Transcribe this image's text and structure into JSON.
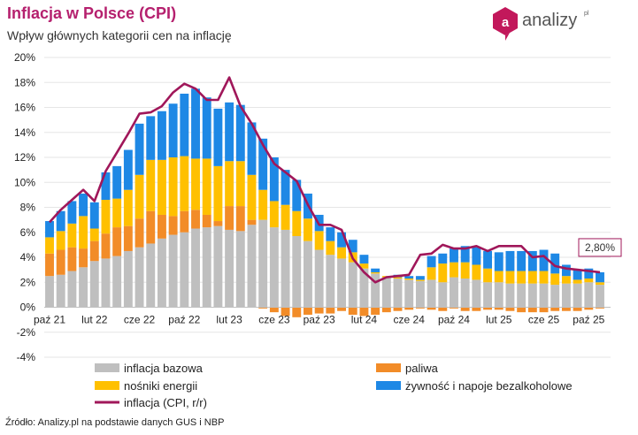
{
  "header": {
    "title": "Inflacja w Polsce (CPI)",
    "subtitle": "Wpływ głównych kategorii cen na inflację"
  },
  "logo": {
    "text": "analizy",
    "sup": "pl",
    "mark": "a",
    "color": "#c2185b"
  },
  "source": "Źródło: Analizy.pl na podstawie danych GUS i NBP",
  "chart_data": {
    "type": "bar",
    "stacked": true,
    "title": "Inflacja w Polsce (CPI)",
    "ylim": [
      -4,
      20
    ],
    "yticks": [
      -4,
      -2,
      0,
      2,
      4,
      6,
      8,
      10,
      12,
      14,
      16,
      18,
      20
    ],
    "ytick_labels": [
      "-4%",
      "-2%",
      "0%",
      "2%",
      "4%",
      "6%",
      "8%",
      "10%",
      "12%",
      "14%",
      "16%",
      "18%",
      "20%"
    ],
    "x_labels": [
      {
        "index": 0,
        "label": "paź 21"
      },
      {
        "index": 4,
        "label": "lut 22"
      },
      {
        "index": 8,
        "label": "cze 22"
      },
      {
        "index": 12,
        "label": "paź 22"
      },
      {
        "index": 16,
        "label": "lut 23"
      },
      {
        "index": 20,
        "label": "cze 23"
      },
      {
        "index": 24,
        "label": "paź 23"
      },
      {
        "index": 28,
        "label": "lut 24"
      },
      {
        "index": 32,
        "label": "cze 24"
      },
      {
        "index": 36,
        "label": "paź 24"
      },
      {
        "index": 40,
        "label": "lut 25"
      },
      {
        "index": 44,
        "label": "cze 25"
      },
      {
        "index": 48,
        "label": "paź 25"
      }
    ],
    "series": [
      {
        "name": "inflacja bazowa",
        "color": "#bfbfbf",
        "values": [
          2.5,
          2.6,
          2.9,
          3.2,
          3.7,
          3.9,
          4.1,
          4.5,
          4.8,
          5.1,
          5.5,
          5.8,
          6.0,
          6.3,
          6.4,
          6.5,
          6.2,
          6.1,
          6.6,
          7.0,
          6.4,
          6.2,
          5.7,
          5.3,
          4.6,
          4.2,
          3.9,
          3.6,
          3.1,
          2.7,
          2.4,
          2.3,
          2.2,
          2.1,
          2.2,
          2.0,
          2.4,
          2.3,
          2.2,
          2.0,
          2.0,
          1.9,
          1.9,
          1.9,
          1.9,
          1.8,
          1.9,
          1.9,
          2.0,
          1.8
        ]
      },
      {
        "name": "paliwa",
        "color": "#f28c28",
        "values": [
          1.8,
          2.0,
          1.9,
          1.5,
          1.6,
          2.0,
          2.3,
          2.0,
          2.3,
          2.6,
          1.9,
          1.5,
          1.7,
          1.5,
          1.0,
          0.4,
          1.9,
          2.0,
          0.4,
          -0.1,
          -0.4,
          -0.7,
          -0.8,
          -0.6,
          -0.5,
          -0.5,
          -0.3,
          -0.6,
          -0.7,
          -0.6,
          -0.4,
          -0.3,
          -0.2,
          -0.1,
          -0.2,
          -0.3,
          -0.1,
          -0.3,
          -0.3,
          -0.2,
          -0.2,
          -0.3,
          -0.4,
          -0.4,
          -0.4,
          -0.3,
          -0.3,
          -0.3,
          -0.2,
          -0.1
        ]
      },
      {
        "name": "nośniki energii",
        "color": "#ffc000",
        "values": [
          1.3,
          1.5,
          1.9,
          2.6,
          1.0,
          2.7,
          2.3,
          2.9,
          3.5,
          4.1,
          4.4,
          4.7,
          4.4,
          4.1,
          4.5,
          4.4,
          3.6,
          3.6,
          3.6,
          2.4,
          2.1,
          2.0,
          2.0,
          1.8,
          1.5,
          1.1,
          0.9,
          0.8,
          0.4,
          0.1,
          0.1,
          0.1,
          0.1,
          0.1,
          1.0,
          1.5,
          1.2,
          1.3,
          1.2,
          1.1,
          0.9,
          1.0,
          1.0,
          1.0,
          1.0,
          0.9,
          0.6,
          0.3,
          0.3,
          0.2
        ]
      },
      {
        "name": "żywność i napoje bezalkoholowe",
        "color": "#1e88e5",
        "values": [
          1.3,
          1.6,
          1.8,
          1.8,
          2.1,
          2.2,
          2.6,
          3.2,
          4.1,
          3.5,
          3.9,
          4.3,
          5.0,
          5.6,
          4.9,
          4.6,
          4.7,
          4.5,
          4.2,
          4.1,
          3.5,
          2.8,
          2.5,
          2.0,
          1.3,
          1.1,
          1.2,
          1.0,
          0.7,
          0.3,
          0.0,
          0.2,
          0.2,
          0.3,
          0.9,
          0.8,
          1.1,
          1.3,
          1.4,
          1.4,
          1.5,
          1.6,
          1.6,
          1.6,
          1.7,
          1.6,
          0.9,
          0.8,
          0.8,
          0.8
        ]
      },
      {
        "name": "inflacja (CPI, r/r)",
        "type": "line",
        "color": "#a0175a",
        "values": [
          6.8,
          7.8,
          8.6,
          9.4,
          8.5,
          10.9,
          12.4,
          13.9,
          15.5,
          15.6,
          16.1,
          17.2,
          17.9,
          17.5,
          16.6,
          16.6,
          18.4,
          16.1,
          14.7,
          13.0,
          11.5,
          10.8,
          10.1,
          8.2,
          6.6,
          6.6,
          6.2,
          3.9,
          2.8,
          2.0,
          2.4,
          2.5,
          2.6,
          4.2,
          4.3,
          5.0,
          4.7,
          4.7,
          4.9,
          4.5,
          4.9,
          4.9,
          4.9,
          4.0,
          4.1,
          3.3,
          3.1,
          3.0,
          2.9,
          2.8
        ]
      }
    ],
    "annotation": {
      "index": 49,
      "value": 2.8,
      "label": "2,80%"
    }
  }
}
